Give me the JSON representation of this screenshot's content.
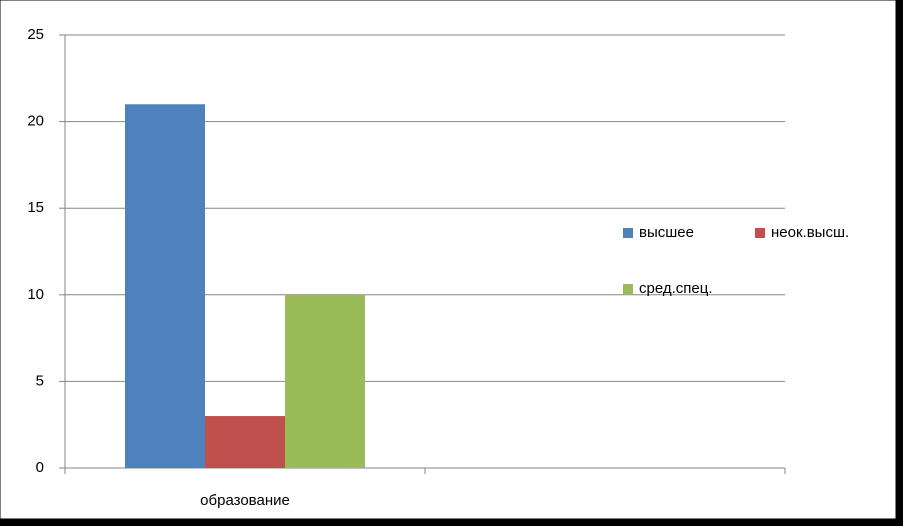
{
  "chart_data": {
    "type": "bar",
    "categories": [
      "образование",
      null
    ],
    "series": [
      {
        "name": "высшее",
        "color": "#4f81bd",
        "values": [
          21,
          null
        ]
      },
      {
        "name": "неок.высш.",
        "color": "#c0504d",
        "values": [
          3,
          null
        ]
      },
      {
        "name": "сред.спец.",
        "color": "#9bbb59",
        "values": [
          10,
          null
        ]
      }
    ],
    "ylim": [
      0,
      25
    ],
    "yticks": [
      0,
      5,
      10,
      15,
      20,
      25
    ],
    "grid": true,
    "legend": "right"
  }
}
